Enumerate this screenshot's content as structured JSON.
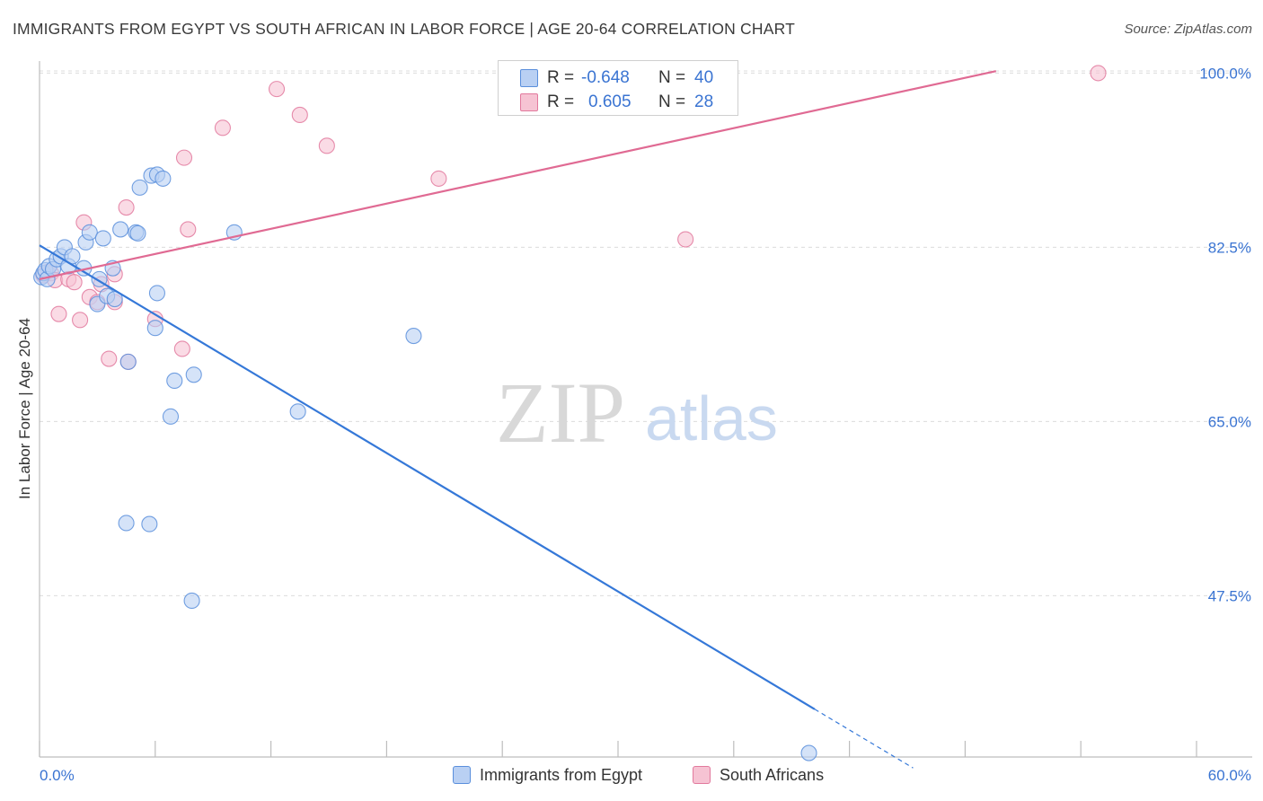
{
  "header": {
    "title": "IMMIGRANTS FROM EGYPT VS SOUTH AFRICAN IN LABOR FORCE | AGE 20-64 CORRELATION CHART",
    "source": "Source: ZipAtlas.com"
  },
  "legend": {
    "r_label": "R =",
    "n_label": "N =",
    "series": [
      {
        "r": "-0.648",
        "n": "40"
      },
      {
        "r": "0.605",
        "n": "28"
      }
    ]
  },
  "watermark": {
    "zip": "ZIP",
    "atlas": "atlas"
  },
  "chart_data": {
    "type": "scatter",
    "title": "IMMIGRANTS FROM EGYPT VS SOUTH AFRICAN IN LABOR FORCE | AGE 20-64 CORRELATION CHART",
    "xlabel": "",
    "ylabel": "In Labor Force | Age 20-64",
    "xlim": [
      0,
      60
    ],
    "ylim": [
      31.3,
      102.2
    ],
    "x_tick_labels": [
      "0.0%",
      "60.0%"
    ],
    "y_tick_values": [
      47.5,
      65.0,
      82.5,
      100.0
    ],
    "y_tick_labels": [
      "47.5%",
      "65.0%",
      "82.5%",
      "100.0%"
    ],
    "grid": true,
    "legend_position": "top-center",
    "colors": {
      "egypt": "#5a8fdc",
      "egypt_fill": "#b9d0f3",
      "south_africa": "#e2799d",
      "south_africa_fill": "#f6c3d3",
      "egypt_line": "#3578d8",
      "south_africa_line": "#e06a93"
    },
    "series": [
      {
        "name": "Immigrants from Egypt",
        "color": "#5a8fdc",
        "points": [
          [
            0.1,
            79.5
          ],
          [
            0.2,
            79.9
          ],
          [
            0.3,
            80.2
          ],
          [
            0.4,
            79.3
          ],
          [
            0.5,
            80.6
          ],
          [
            0.7,
            80.3
          ],
          [
            0.9,
            81.3
          ],
          [
            1.1,
            81.6
          ],
          [
            1.3,
            82.5
          ],
          [
            1.5,
            80.6
          ],
          [
            1.7,
            81.6
          ],
          [
            2.3,
            80.4
          ],
          [
            2.4,
            83.0
          ],
          [
            2.6,
            84.0
          ],
          [
            3.3,
            83.4
          ],
          [
            3.0,
            76.8
          ],
          [
            3.1,
            79.3
          ],
          [
            3.5,
            77.6
          ],
          [
            3.8,
            80.4
          ],
          [
            3.9,
            77.3
          ],
          [
            4.2,
            84.3
          ],
          [
            4.6,
            71.0
          ],
          [
            5.0,
            84.0
          ],
          [
            5.1,
            83.9
          ],
          [
            5.2,
            88.5
          ],
          [
            5.8,
            89.7
          ],
          [
            6.1,
            89.8
          ],
          [
            6.4,
            89.4
          ],
          [
            6.0,
            74.4
          ],
          [
            6.1,
            77.9
          ],
          [
            6.8,
            65.5
          ],
          [
            7.0,
            69.1
          ],
          [
            8.0,
            69.7
          ],
          [
            10.1,
            84.0
          ],
          [
            13.4,
            66.0
          ],
          [
            19.4,
            73.6
          ],
          [
            4.5,
            54.8
          ],
          [
            5.7,
            54.7
          ],
          [
            7.9,
            47.0
          ],
          [
            39.9,
            31.7
          ]
        ]
      },
      {
        "name": "South Africans",
        "color": "#e2799d",
        "points": [
          [
            0.2,
            79.7
          ],
          [
            0.4,
            80.0
          ],
          [
            0.6,
            79.9
          ],
          [
            0.8,
            79.2
          ],
          [
            1.0,
            75.8
          ],
          [
            1.5,
            79.3
          ],
          [
            1.8,
            79.0
          ],
          [
            2.1,
            75.2
          ],
          [
            2.3,
            85.0
          ],
          [
            2.6,
            77.5
          ],
          [
            3.0,
            77.0
          ],
          [
            3.2,
            78.8
          ],
          [
            3.6,
            71.3
          ],
          [
            3.9,
            77.0
          ],
          [
            3.9,
            79.8
          ],
          [
            4.5,
            86.5
          ],
          [
            4.6,
            71.0
          ],
          [
            6.0,
            75.3
          ],
          [
            7.4,
            72.3
          ],
          [
            7.5,
            91.5
          ],
          [
            7.7,
            84.3
          ],
          [
            9.5,
            94.5
          ],
          [
            12.3,
            98.4
          ],
          [
            13.5,
            95.8
          ],
          [
            14.9,
            92.7
          ],
          [
            20.7,
            89.4
          ],
          [
            33.5,
            83.3
          ],
          [
            54.9,
            100.0
          ]
        ]
      }
    ],
    "trend_lines": [
      {
        "series": "Immigrants from Egypt",
        "x0": 0,
        "y0": 82.7,
        "x1": 40.2,
        "y1": 36.1,
        "dashed_to_x": 45.3,
        "dashed_to_y": 30.2
      },
      {
        "series": "South Africans",
        "x0": 0,
        "y0": 79.3,
        "x1": 49.6,
        "y1": 100.2
      }
    ]
  },
  "bottom_legend": [
    {
      "label": "Immigrants from Egypt"
    },
    {
      "label": "South Africans"
    }
  ]
}
